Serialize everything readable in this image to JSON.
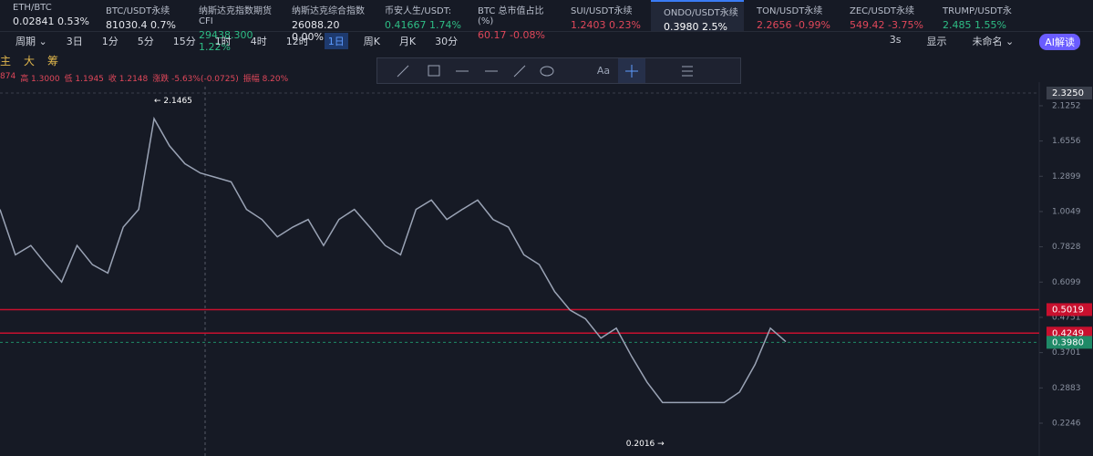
{
  "tickers": [
    {
      "name": "ETH/BTC",
      "price": "0.02841",
      "change": "0.53%",
      "color": "#e6e8ee"
    },
    {
      "name": "BTC/USDT永续",
      "price": "81030.4",
      "change": "0.7%",
      "color": "#e6e8ee"
    },
    {
      "name": "纳斯达克指数期货CFI",
      "price": "29438.300",
      "change": "1.22%",
      "color": "#2ebd85"
    },
    {
      "name": "纳斯达克综合指数",
      "price": "26088.20",
      "change": "0.00%",
      "color": "#e6e8ee"
    },
    {
      "name": "币安人生/USDT:",
      "price": "0.41667",
      "change": "1.74%",
      "color": "#2ebd85"
    },
    {
      "name": "BTC 总市值占比 (%)",
      "price": "60.17",
      "change": "-0.08%",
      "color": "#e0475a"
    },
    {
      "name": "SUI/USDT永续",
      "price": "1.2403",
      "change": "0.23%",
      "color": "#e0475a"
    },
    {
      "name": "ONDO/USDT永续",
      "price": "0.3980",
      "change": "2.5%",
      "color": "#ffffff"
    },
    {
      "name": "TON/USDT永续",
      "price": "2.2656",
      "change": "-0.99%",
      "color": "#e0475a"
    },
    {
      "name": "ZEC/USDT永续",
      "price": "549.42",
      "change": "-3.75%",
      "color": "#e0475a"
    },
    {
      "name": "TRUMP/USDT永",
      "price": "2.485",
      "change": "1.55%",
      "color": "#2ebd85"
    }
  ],
  "toolbar": {
    "intervals": [
      "周期 ⌄",
      "3日",
      "1分",
      "5分",
      "15分",
      "1时",
      "4时",
      "12时",
      "1日",
      "周K",
      "月K",
      "30分"
    ],
    "active": "1日",
    "right": [
      "3s",
      "显示",
      "未命名 ⌄",
      "AI解读"
    ]
  },
  "indicators": [
    "主",
    "大",
    "筹"
  ],
  "drawing_tools": {
    "text_tool": "Aa"
  },
  "ohlc": [
    "874",
    "高 1.3000",
    "低 1.1945",
    "收 1.2148",
    "涨跌 -5.63%(-0.0725)",
    "振幅 8.20%"
  ],
  "chart_data": {
    "type": "line",
    "log_scale": true,
    "color": "#9aa3b5",
    "values": [
      1.02,
      0.74,
      0.79,
      0.69,
      0.61,
      0.79,
      0.69,
      0.65,
      0.9,
      1.02,
      1.94,
      1.6,
      1.41,
      1.32,
      1.28,
      1.24,
      1.02,
      0.95,
      0.84,
      0.9,
      0.95,
      0.79,
      0.95,
      1.02,
      0.9,
      0.79,
      0.74,
      1.02,
      1.09,
      0.95,
      1.02,
      1.09,
      0.95,
      0.9,
      0.74,
      0.69,
      0.57,
      0.5,
      0.47,
      0.41,
      0.44,
      0.36,
      0.3,
      0.26,
      0.26,
      0.26,
      0.26,
      0.26,
      0.28,
      0.34,
      0.44,
      0.4
    ],
    "ylim": [
      0.178,
      2.513
    ],
    "yticks": [
      2.1252,
      1.6556,
      1.2899,
      1.0049,
      0.7828,
      0.6099,
      0.4751,
      0.3701,
      0.2883,
      0.2246
    ],
    "price_lines": [
      {
        "value": 2.325,
        "label": "2.3250",
        "color": "#3a3f4b"
      },
      {
        "value": 0.5019,
        "label": "0.5019",
        "color": "#c8102e"
      },
      {
        "value": 0.4249,
        "label": "0.4249",
        "color": "#c8102e"
      },
      {
        "value": 0.398,
        "label": "0.3980",
        "color": "#1f8a67"
      }
    ],
    "annotations": [
      {
        "value": 2.1465,
        "label": "← 2.1465"
      },
      {
        "value": 0.2016,
        "label": "0.2016 →"
      }
    ]
  }
}
